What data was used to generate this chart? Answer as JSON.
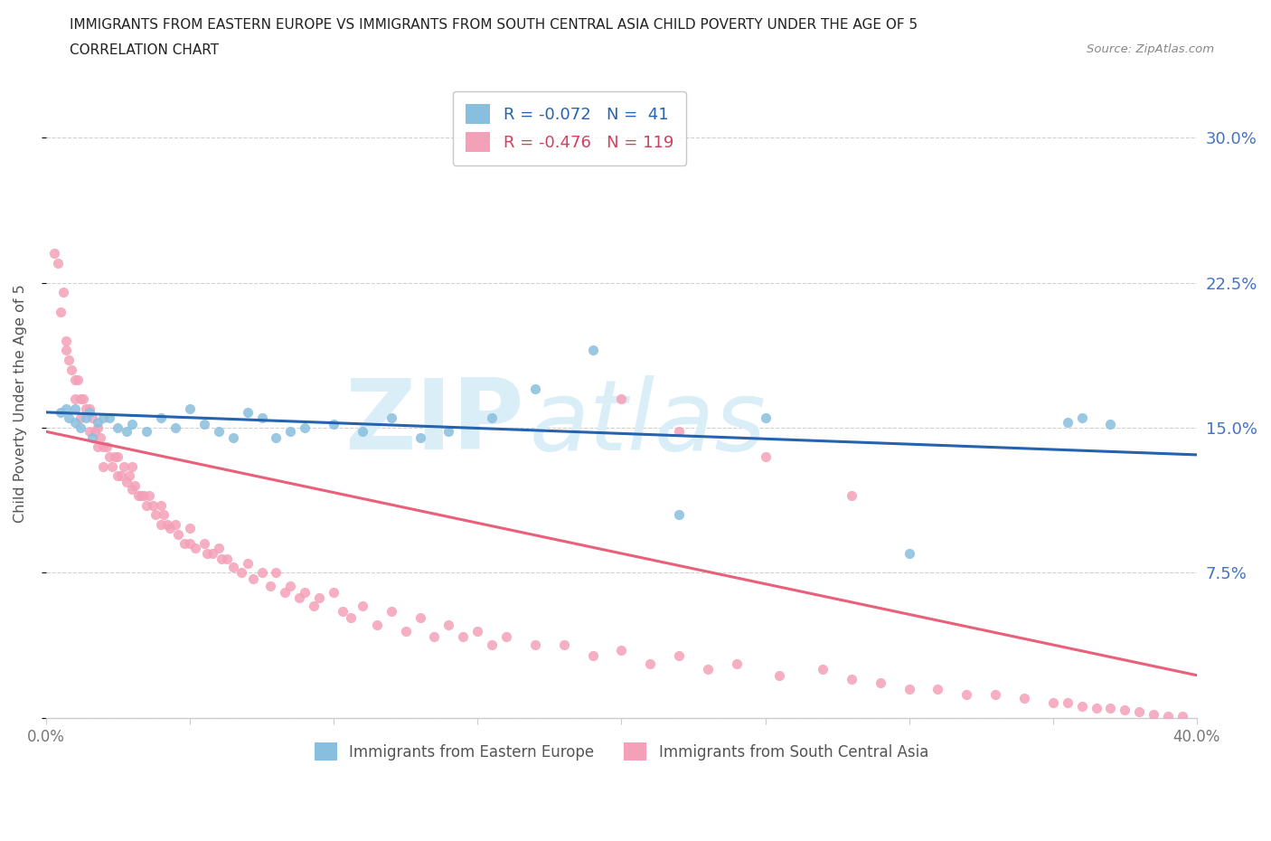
{
  "title_line1": "IMMIGRANTS FROM EASTERN EUROPE VS IMMIGRANTS FROM SOUTH CENTRAL ASIA CHILD POVERTY UNDER THE AGE OF 5",
  "title_line2": "CORRELATION CHART",
  "source_text": "Source: ZipAtlas.com",
  "ylabel": "Child Poverty Under the Age of 5",
  "xlim": [
    0.0,
    0.4
  ],
  "ylim": [
    0.0,
    0.325
  ],
  "xticks": [
    0.0,
    0.05,
    0.1,
    0.15,
    0.2,
    0.25,
    0.3,
    0.35,
    0.4
  ],
  "xticklabels": [
    "0.0%",
    "",
    "",
    "",
    "",
    "",
    "",
    "",
    "40.0%"
  ],
  "yticks": [
    0.0,
    0.075,
    0.15,
    0.225,
    0.3
  ],
  "yticklabels_right": [
    "",
    "7.5%",
    "15.0%",
    "22.5%",
    "30.0%"
  ],
  "color_blue": "#89bfde",
  "color_pink": "#f4a0b8",
  "color_blue_line": "#2563ae",
  "color_pink_line": "#e8607a",
  "legend_R1": "-0.072",
  "legend_N1": "41",
  "legend_R2": "-0.476",
  "legend_N2": "119",
  "legend_text1": "Immigrants from Eastern Europe",
  "legend_text2": "Immigrants from South Central Asia",
  "blue_trend_x0": 0.0,
  "blue_trend_y0": 0.158,
  "blue_trend_x1": 0.4,
  "blue_trend_y1": 0.136,
  "pink_trend_x0": 0.0,
  "pink_trend_y0": 0.148,
  "pink_trend_x1": 0.4,
  "pink_trend_y1": 0.022,
  "grid_color": "#cccccc",
  "grid_linestyle": "--",
  "background_color": "#ffffff",
  "title_color": "#222222",
  "source_color": "#888888",
  "tick_color": "#777777",
  "ylabel_color": "#555555",
  "yticklabel_color": "#4472c4",
  "watermark_text": "ZIPatlas",
  "watermark_color": "#daeef8",
  "blue_x": [
    0.005,
    0.007,
    0.008,
    0.01,
    0.01,
    0.012,
    0.014,
    0.015,
    0.016,
    0.018,
    0.02,
    0.022,
    0.025,
    0.028,
    0.03,
    0.035,
    0.04,
    0.045,
    0.05,
    0.055,
    0.06,
    0.065,
    0.07,
    0.075,
    0.08,
    0.085,
    0.09,
    0.1,
    0.11,
    0.12,
    0.13,
    0.14,
    0.155,
    0.17,
    0.19,
    0.22,
    0.25,
    0.3,
    0.355,
    0.36,
    0.37
  ],
  "blue_y": [
    0.158,
    0.16,
    0.155,
    0.153,
    0.16,
    0.15,
    0.155,
    0.158,
    0.145,
    0.153,
    0.155,
    0.155,
    0.15,
    0.148,
    0.152,
    0.148,
    0.155,
    0.15,
    0.16,
    0.152,
    0.148,
    0.145,
    0.158,
    0.155,
    0.145,
    0.148,
    0.15,
    0.152,
    0.148,
    0.155,
    0.145,
    0.148,
    0.155,
    0.17,
    0.19,
    0.105,
    0.155,
    0.085,
    0.153,
    0.155,
    0.152
  ],
  "pink_x": [
    0.003,
    0.004,
    0.005,
    0.006,
    0.007,
    0.007,
    0.008,
    0.009,
    0.01,
    0.01,
    0.011,
    0.012,
    0.012,
    0.013,
    0.014,
    0.015,
    0.015,
    0.016,
    0.017,
    0.018,
    0.018,
    0.019,
    0.02,
    0.02,
    0.021,
    0.022,
    0.023,
    0.024,
    0.025,
    0.025,
    0.026,
    0.027,
    0.028,
    0.029,
    0.03,
    0.03,
    0.031,
    0.032,
    0.033,
    0.034,
    0.035,
    0.036,
    0.037,
    0.038,
    0.04,
    0.04,
    0.041,
    0.042,
    0.043,
    0.045,
    0.046,
    0.048,
    0.05,
    0.05,
    0.052,
    0.055,
    0.056,
    0.058,
    0.06,
    0.061,
    0.063,
    0.065,
    0.068,
    0.07,
    0.072,
    0.075,
    0.078,
    0.08,
    0.083,
    0.085,
    0.088,
    0.09,
    0.093,
    0.095,
    0.1,
    0.103,
    0.106,
    0.11,
    0.115,
    0.12,
    0.125,
    0.13,
    0.135,
    0.14,
    0.145,
    0.15,
    0.155,
    0.16,
    0.17,
    0.18,
    0.19,
    0.2,
    0.21,
    0.22,
    0.23,
    0.24,
    0.255,
    0.27,
    0.28,
    0.29,
    0.3,
    0.31,
    0.32,
    0.33,
    0.34,
    0.35,
    0.355,
    0.36,
    0.365,
    0.37,
    0.375,
    0.38,
    0.385,
    0.39,
    0.395,
    0.2,
    0.22,
    0.25,
    0.28
  ],
  "pink_y": [
    0.24,
    0.235,
    0.21,
    0.22,
    0.195,
    0.19,
    0.185,
    0.18,
    0.175,
    0.165,
    0.175,
    0.165,
    0.155,
    0.165,
    0.16,
    0.16,
    0.148,
    0.155,
    0.148,
    0.15,
    0.14,
    0.145,
    0.14,
    0.13,
    0.14,
    0.135,
    0.13,
    0.135,
    0.135,
    0.125,
    0.125,
    0.13,
    0.122,
    0.125,
    0.13,
    0.118,
    0.12,
    0.115,
    0.115,
    0.115,
    0.11,
    0.115,
    0.11,
    0.105,
    0.11,
    0.1,
    0.105,
    0.1,
    0.098,
    0.1,
    0.095,
    0.09,
    0.098,
    0.09,
    0.088,
    0.09,
    0.085,
    0.085,
    0.088,
    0.082,
    0.082,
    0.078,
    0.075,
    0.08,
    0.072,
    0.075,
    0.068,
    0.075,
    0.065,
    0.068,
    0.062,
    0.065,
    0.058,
    0.062,
    0.065,
    0.055,
    0.052,
    0.058,
    0.048,
    0.055,
    0.045,
    0.052,
    0.042,
    0.048,
    0.042,
    0.045,
    0.038,
    0.042,
    0.038,
    0.038,
    0.032,
    0.035,
    0.028,
    0.032,
    0.025,
    0.028,
    0.022,
    0.025,
    0.02,
    0.018,
    0.015,
    0.015,
    0.012,
    0.012,
    0.01,
    0.008,
    0.008,
    0.006,
    0.005,
    0.005,
    0.004,
    0.003,
    0.002,
    0.001,
    0.001,
    0.165,
    0.148,
    0.135,
    0.115
  ]
}
